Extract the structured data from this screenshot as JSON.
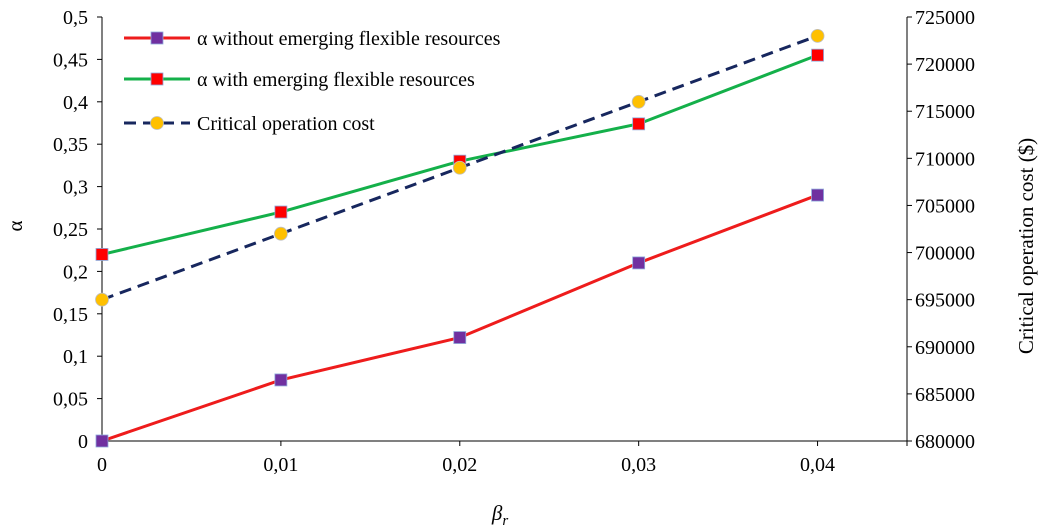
{
  "chart_data": {
    "type": "line",
    "x": [
      0,
      0.01,
      0.02,
      0.03,
      0.04
    ],
    "x_tick_labels": [
      "0",
      "0,01",
      "0,02",
      "0,03",
      "0,04"
    ],
    "xlabel": "β",
    "xlabel_subscript": "r",
    "xlim": [
      0,
      0.045
    ],
    "ylabel": "α",
    "ylim": [
      0,
      0.5
    ],
    "y_tick_labels": [
      "0",
      "0,05",
      "0,1",
      "0,15",
      "0,2",
      "0,25",
      "0,3",
      "0,35",
      "0,4",
      "0,45",
      "0,5"
    ],
    "y2label": "Critical operation cost ($)",
    "y2lim": [
      680000,
      725000
    ],
    "y2_tick_labels": [
      "680000",
      "685000",
      "690000",
      "695000",
      "700000",
      "705000",
      "710000",
      "715000",
      "720000",
      "725000"
    ],
    "grid": false,
    "legend_position": "top-left",
    "series": [
      {
        "name": "α without emerging flexible resources",
        "axis": "left",
        "values": [
          0,
          0.072,
          0.122,
          0.21,
          0.29
        ],
        "line_color": "#ee1c1c",
        "line_style": "solid",
        "marker": "square",
        "marker_color": "#7030a0"
      },
      {
        "name": "α with emerging flexible resources",
        "axis": "left",
        "values": [
          0.22,
          0.27,
          0.33,
          0.374,
          0.455
        ],
        "line_color": "#14b04a",
        "line_style": "solid",
        "marker": "square",
        "marker_color": "#ff0000"
      },
      {
        "name": "Critical operation cost",
        "axis": "right",
        "values": [
          695000,
          702000,
          709000,
          716000,
          723000
        ],
        "line_color": "#17275e",
        "line_style": "dashed",
        "marker": "circle",
        "marker_color": "#ffc000"
      }
    ]
  }
}
